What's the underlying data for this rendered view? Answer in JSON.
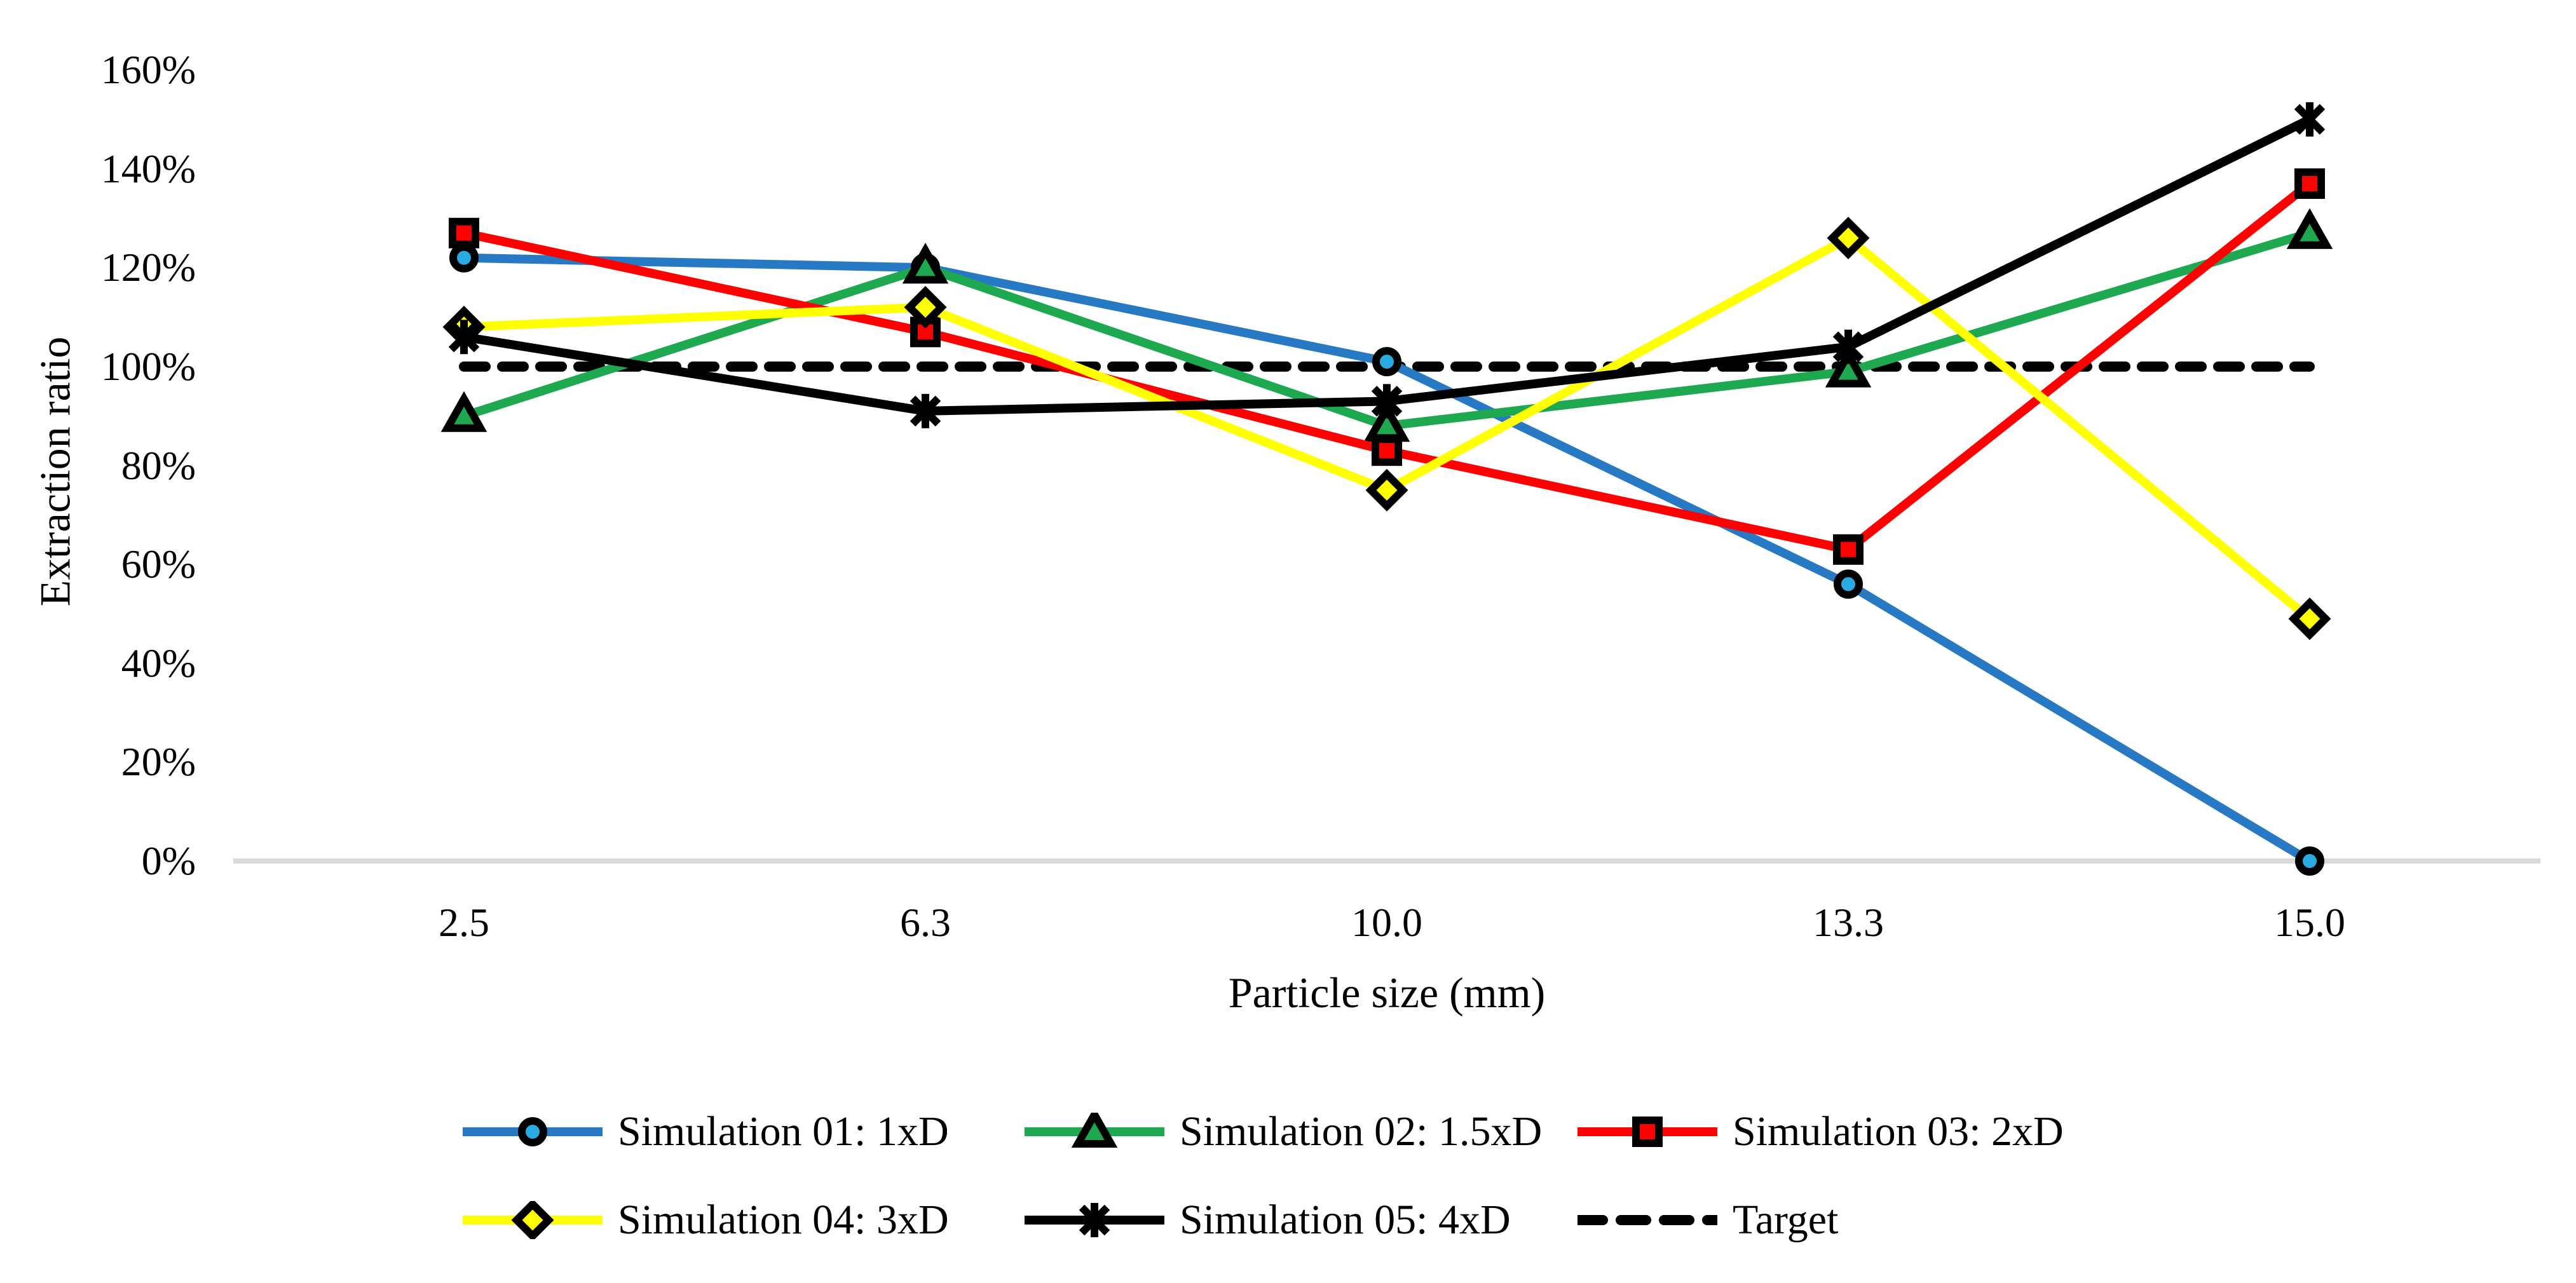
{
  "figure": {
    "background": "#FFFFFF",
    "axis_line_color": "#D9D9D9",
    "text_color": "#000000"
  },
  "chart_data": {
    "type": "line",
    "title": "",
    "xlabel": "Particle size (mm)",
    "ylabel": "Extraction ratio",
    "x_categories": [
      "2.5",
      "6.3",
      "10.0",
      "13.3",
      "15.0"
    ],
    "y_ticks": [
      "0%",
      "20%",
      "40%",
      "60%",
      "80%",
      "100%",
      "120%",
      "140%",
      "160%"
    ],
    "ylim": [
      0,
      160
    ],
    "ytick_step": 20,
    "grid": "off",
    "legend_position": "bottom",
    "series": [
      {
        "name": "Simulation 01: 1xD",
        "color": "#2779C4",
        "marker": "circle",
        "marker_fill": "#29ABE2",
        "dashed": false,
        "values": [
          122,
          120,
          101,
          56,
          0
        ]
      },
      {
        "name": "Simulation 02: 1.5xD",
        "color": "#1EA850",
        "marker": "triangle",
        "marker_fill": "#1EA850",
        "dashed": false,
        "values": [
          90,
          120,
          88,
          99,
          127
        ]
      },
      {
        "name": "Simulation 03: 2xD",
        "color": "#FF0000",
        "marker": "square",
        "marker_fill": "#FF0000",
        "dashed": false,
        "values": [
          127,
          107,
          83,
          63,
          137
        ]
      },
      {
        "name": "Simulation 04: 3xD",
        "color": "#FFFF00",
        "marker": "diamond",
        "marker_fill": "#FFFF00",
        "dashed": false,
        "values": [
          108,
          112,
          75,
          126,
          49
        ]
      },
      {
        "name": "Simulation 05: 4xD",
        "color": "#000000",
        "marker": "asterisk",
        "marker_fill": "#000000",
        "dashed": false,
        "values": [
          106,
          91,
          93,
          104,
          150
        ]
      },
      {
        "name": "Target",
        "color": "#000000",
        "marker": "none",
        "marker_fill": "#000000",
        "dashed": true,
        "values": [
          100,
          100,
          100,
          100,
          100
        ]
      }
    ],
    "legend_rows": [
      [
        0,
        1,
        2
      ],
      [
        3,
        4,
        5
      ]
    ]
  }
}
